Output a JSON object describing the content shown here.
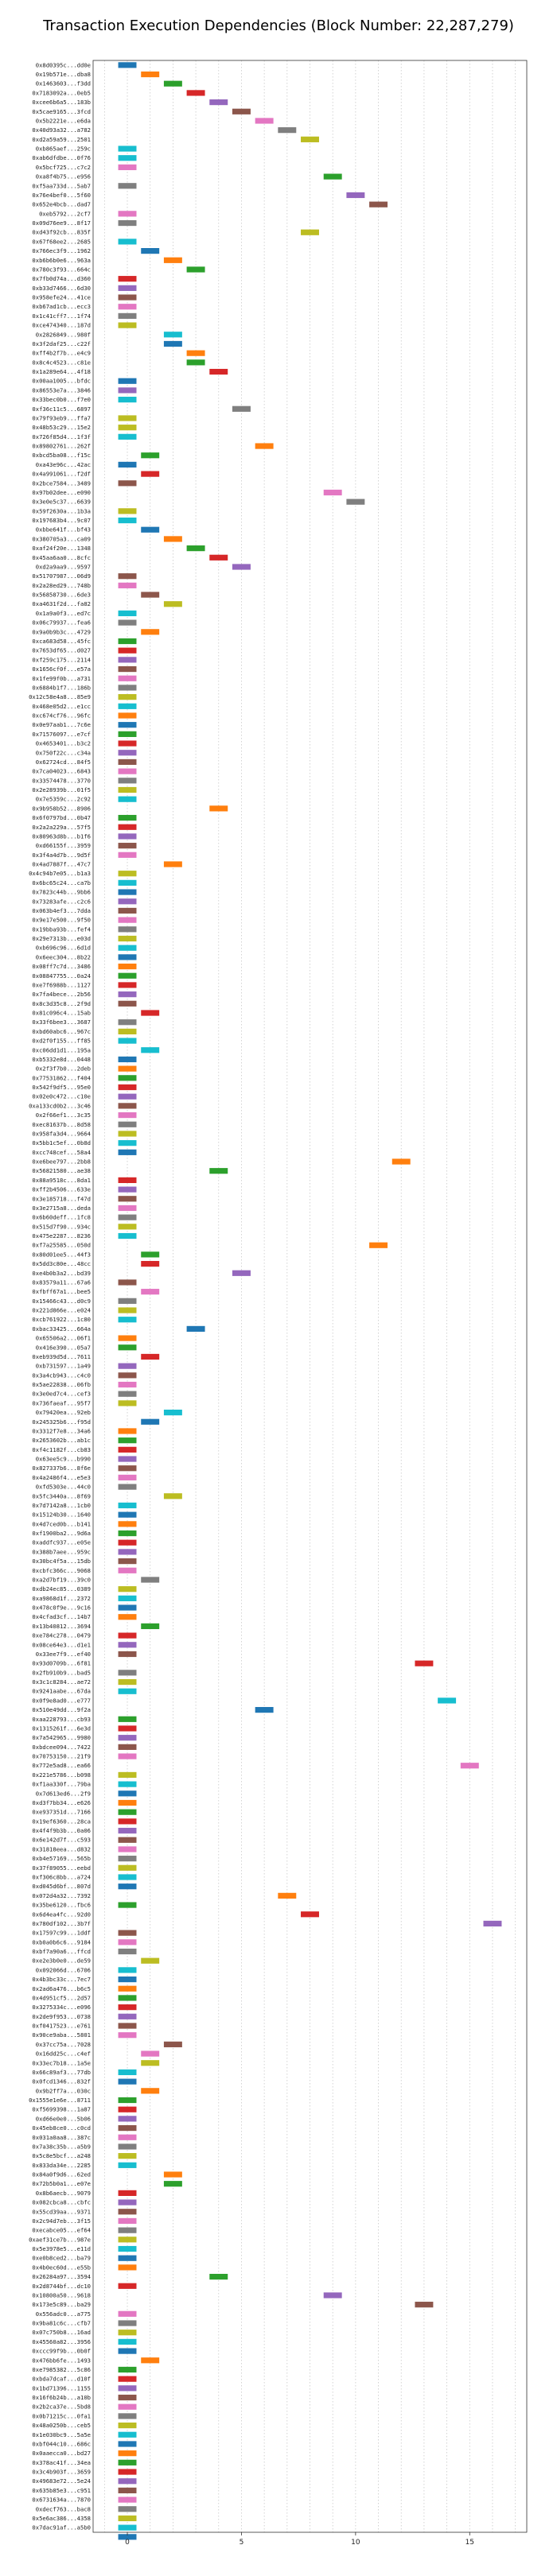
{
  "chart_data": {
    "type": "bar",
    "orientation": "horizontal",
    "title": "Transaction Execution Dependencies (Block Number: 22,287,279)",
    "xlabel": "",
    "ylabel": "",
    "xlim": [
      -1.5,
      17.5
    ],
    "xticks": [
      0,
      5,
      10,
      15
    ],
    "grid": true,
    "legend": "none",
    "palette": [
      "#1f77b4",
      "#ff7f0e",
      "#2ca02c",
      "#d62728",
      "#9467bd",
      "#8c564b",
      "#e377c2",
      "#7f7f7f",
      "#bcbd22",
      "#17becf"
    ],
    "bar_width": 0.8,
    "categories": [
      "0x8d0395c...dd0e",
      "0x19b571e...dba8",
      "0x1463603...f3dd",
      "0x7183092a...0eb5",
      "0xcee6b6a5...183b",
      "0x5cae9165...3fcd",
      "0x5b2221e...e6da",
      "0x40d93a32...a782",
      "0xd2a59a59...2501",
      "0xb865aef...259c",
      "0xab6dfdbe...0f76",
      "0x5bcf725...c7c2",
      "0xa8f4b75...e956",
      "0xf5aa733d...5ab7",
      "0x76e4bef0...5f60",
      "0x652e4bcb...dad7",
      "0xeb5792...2cf7",
      "0x09d76ee9...8f17",
      "0xd43f92cb...835f",
      "0x67f68ee2...2685",
      "0x766ec3f9...1962",
      "0xb6b6b0e6...963a",
      "0x780c3f93...664c",
      "0x7fb0d74a...d360",
      "0xb33d7466...6d30",
      "0x958efe24...41ce",
      "0xb67ad1cb...ecc3",
      "0x1c41cff7...1f74",
      "0xce474340...187d",
      "0x2826849...980f",
      "0x3f2daf25...c22f",
      "0xff4b2f7b...e4c9",
      "0x8c4c4523...c81e",
      "0x1a289e64...4f18",
      "0x00aa1005...bfdc",
      "0x86553e7a...3846",
      "0x33bec0b0...f7e0",
      "0xf36c11c5...6897",
      "0x79f93eb9...ffa7",
      "0x48b53c29...15e2",
      "0x726f85d4...1f3f",
      "0x89802761...262f",
      "0xbcd5ba08...f15c",
      "0xa43e96c...42ac",
      "0x4a991061...f2df",
      "0x2bce7584...3489",
      "0x97b02dee...e090",
      "0x3e0e5c37...6639",
      "0x59f2630a...1b3a",
      "0x197683b4...9c07",
      "0xbbe641f...bf43",
      "0x380705a3...ca09",
      "0xaf24f20e...1348",
      "0x45aa6aa0...8cfc",
      "0xd2a9aa9...9597",
      "0x51707987...06d9",
      "0x2a28ed29...748b",
      "0x56858730...6de3",
      "0xa4631f2d...fa82",
      "0x1a9a0f3...ed7c",
      "0x06c79937...fea6",
      "0x9a0b9b3c...4729",
      "0xca683d58...45fc",
      "0x7653df65...d027",
      "0xf259c175...2114",
      "0x1656cf0f...e57a",
      "0x1fe99f0b...a731",
      "0x6884b1f7...186b",
      "0x12c58e4a8...85e9",
      "0x468e05d2...e1cc",
      "0xc674cf76...96fc",
      "0x0e97aab1...7c6e",
      "0x71576097...e7cf",
      "0x4653401...b3c2",
      "0x750f22c...c34a",
      "0x62724cd...84f5",
      "0x7ca04023...6843",
      "0x33574478...3770",
      "0x2e28939b...01f5",
      "0x7e5359c...2c92",
      "0x9b958b52...8906",
      "0x6f0797bd...0b47",
      "0x2a2a229a...57f5",
      "0x80963d8b...b1f6",
      "0xd66155f...3959",
      "0x3f4a4d7b...9d5f",
      "0x4ad7887f...47c7",
      "0x4c94b7e05...b1a3",
      "0x6bc65c24...ca7b",
      "0x7823c44b...9bb6",
      "0x73283afe...c2c6",
      "0x063b4ef3...7dda",
      "0x9e17e500...9f50",
      "0x19bba93b...fef4",
      "0x29e7313b...e03d",
      "0xb696c96...6d1d",
      "0x6eec304...8b22",
      "0x08ff7c7d...3486",
      "0x08847755...0a24",
      "0xe7f6988b...1127",
      "0x7fa4bece...2b56",
      "0x8c3d35c8...2f9d",
      "0x81c096c4...15ab",
      "0x33f6bee3...3687",
      "0xbd60abc6...967c",
      "0xd2f0f155...ff85",
      "0xc06dd1d1...195a",
      "0xb5332e8d...0448",
      "0x2f3f7b0...2deb",
      "0x77531862...f404",
      "0x542f9df5...95e0",
      "0x02e0c472...c10e",
      "0xa133cd0b2...3c46",
      "0x2f66ef1...3c35",
      "0xec81637b...8d58",
      "0x958fa3d4...9664",
      "0x5bb1c5ef...0b8d",
      "0xcc748cef...58a4",
      "0xe6bee797...2bb8",
      "0x56821580...ae38",
      "0x88a9518c...8da1",
      "0xff2b4506...633e",
      "0x3e185718...f47d",
      "0x3e2715a8...deda",
      "0x6b60deff...1fc8",
      "0x515d7f90...934c",
      "0x475e2287...8236",
      "0xf7a25585...050d",
      "0x80d01ee5...44f3",
      "0x5dd3c80e...48cc",
      "0xe4b0b3a2...bd39",
      "0x83579a11...67a6",
      "0xfbff67a1...bee5",
      "0x15466c43...d0c9",
      "0x221d866e...e024",
      "0xcb761922...1c80",
      "0xbac33425...664a",
      "0x65506a2...06f1",
      "0x416e390...05a7",
      "0xeb939d5d...7611",
      "0xb731597...1a49",
      "0x3a4cb943...c4c0",
      "0x5ae22838...06fb",
      "0x3e0ed7c4...cef3",
      "0x736faeaf...95f7",
      "0x79420ea...92eb",
      "0x245325b6...f95d",
      "0x3312f7e8...34a6",
      "0x2653602b...ab1c",
      "0xf4c1182f...cb83",
      "0x63ee5c9...b990",
      "0x827337b6...8f6e",
      "0x4a2486f4...e5e3",
      "0xfd5303e...44c0",
      "0x5fc3440a...8f69",
      "0x7d7142a8...1cb0",
      "0x15124b30...1640",
      "0x4d7ced0b...b141",
      "0xf1900ba2...9d6a",
      "0xaddfc937...e05e",
      "0x388b7aee...959c",
      "0x30bc4f5a...15db",
      "0xcbfc366c...9068",
      "0xa2d7bf19...39c0",
      "0xdb24ec85...0389",
      "0xa9868d1f...2372",
      "0x478c0f9e...9c16",
      "0x4cfad3cf...14b7",
      "0x13b40812...3694",
      "0xe784c278...0479",
      "0x08ce64e3...d1e1",
      "0x33ee7f9...ef40",
      "0x93d0709b...6f81",
      "0x2fb910b9...bad5",
      "0x3c1c8284...ae72",
      "0x9241aabe...67da",
      "0x0f9e8ad0...e777",
      "0x510e49dd...9f2a",
      "0xaa228793...cb93",
      "0x1315261f...6e3d",
      "0x7a542965...9980",
      "0xbdcee094...7422",
      "0x70753150...21f9",
      "0x772e5ad8...ea66",
      "0x221e5786...b098",
      "0xf1aa330f...79ba",
      "0x7d613ed6...2f9",
      "0xd3f7bb34...e626",
      "0xe937351d...7166",
      "0x19ef6360...28ca",
      "0x4f4f9b3b...0a06",
      "0x6e142d7f...c593",
      "0x31818eea...d832",
      "0xb4e57169...565b",
      "0x37f89055...eebd",
      "0xf306c8bb...a724",
      "0xd045d6bf...807d",
      "0x072d4a32...7392",
      "0x35be6120...fbc6",
      "0x6d4ea4fc...92d0",
      "0x780df102...3b7f",
      "0x17597c99...1ddf",
      "0xb0a0b6c6...9184",
      "0xbf7a90a6...ffcd",
      "0xe2e3b0e0...de59",
      "0x092066d...6706",
      "0x4b3bc33c...7ec7",
      "0x2ad6a476...b6c5",
      "0x4d951cf5...2d57",
      "0x3275334c...e096",
      "0x2de9f953...0738",
      "0xf0417523...e761",
      "0x90ce9aba...5801",
      "0x37cc75a...7028",
      "0x16dd25c...c4ef",
      "0x33ec7b18...1a5e",
      "0x66c89af3...77db",
      "0x0fcd1346...832f",
      "0x9b2ff7a...030c",
      "0x1555e1e6e...8711",
      "0xf5699398...1a87",
      "0xd66e0e0...5b06",
      "0x45eb8ce0...c0cd",
      "0x031a0aa8...387c",
      "0x7a38c35b...a5b9",
      "0x5c8e5bcf...a248",
      "0x833da34e...2285",
      "0x84a0f9d6...62ed",
      "0x72b5b0a1...e07e",
      "0x8b6aecb...9079",
      "0x082cbca8...cbfc",
      "0x55cd39aa...9371",
      "0x2c94d7eb...3f15",
      "0xecabce05...ef64",
      "0xaef31ce7b...987e",
      "0x5e3978e5...e11d",
      "0xe0b8ced2...ba79",
      "0x4b0ec60d...e55b",
      "0x26284a97...3594",
      "0x2d8744bf...dc10",
      "0x10800a50...9618",
      "0x173e5c89...ba29",
      "0x556adc0...a775",
      "0x9ba81c6c...cfb7",
      "0x07c750b8...16ad",
      "0x45560a82...3956",
      "0xccc99f9b...0b0f",
      "0x476bb6fe...1493",
      "0xe7985382...5c86",
      "0xbda7dcaf...d10f",
      "0x1bd71396...1155",
      "0x16f6b24b...a10b",
      "0x2b2ca37e...5bd8",
      "0x0b71215c...0fa1",
      "0x48a0250b...ceb5",
      "0x1e030bc9...5a5e",
      "0xbf044c10...686c",
      "0x0aaecca0...bd27",
      "0x378ac41f...34ea",
      "0x3c4b903f...3659",
      "0x49683e72...5e24",
      "0x635b85e3...c951",
      "0x6731634a...7870",
      "0xdecf763...bac8",
      "0x5e6ac386...4358",
      "0x7dac91af...a5b0"
    ],
    "bars": [
      [
        0,
        0
      ],
      [
        1,
        1
      ],
      [
        2,
        2
      ],
      [
        3,
        3
      ],
      [
        4,
        4
      ],
      [
        5,
        5
      ],
      [
        6,
        6
      ],
      [
        7,
        7
      ],
      [
        8,
        8
      ],
      [
        0,
        9
      ],
      [
        0,
        9
      ],
      [
        0,
        6
      ],
      [
        9,
        2
      ],
      [
        0,
        7
      ],
      [
        10,
        4
      ],
      [
        11,
        5
      ],
      [
        0,
        6
      ],
      [
        0,
        7
      ],
      [
        8,
        8
      ],
      [
        0,
        9
      ],
      [
        1,
        0
      ],
      [
        2,
        1
      ],
      [
        3,
        2
      ],
      [
        0,
        3
      ],
      [
        0,
        4
      ],
      [
        0,
        5
      ],
      [
        0,
        6
      ],
      [
        0,
        7
      ],
      [
        0,
        8
      ],
      [
        2,
        9
      ],
      [
        2,
        0
      ],
      [
        3,
        1
      ],
      [
        3,
        2
      ],
      [
        4,
        3
      ],
      [
        0,
        0
      ],
      [
        0,
        4
      ],
      [
        0,
        9
      ],
      [
        5,
        7
      ],
      [
        0,
        8
      ],
      [
        0,
        8
      ],
      [
        0,
        9
      ],
      [
        6,
        1
      ],
      [
        1,
        2
      ],
      [
        0,
        0
      ],
      [
        1,
        3
      ],
      [
        0,
        5
      ],
      [
        9,
        6
      ],
      [
        10,
        7
      ],
      [
        0,
        8
      ],
      [
        0,
        9
      ],
      [
        1,
        0
      ],
      [
        2,
        1
      ],
      [
        3,
        2
      ],
      [
        4,
        3
      ],
      [
        5,
        4
      ],
      [
        0,
        5
      ],
      [
        0,
        6
      ],
      [
        1,
        5
      ],
      [
        2,
        8
      ],
      [
        0,
        9
      ],
      [
        0,
        7
      ],
      [
        1,
        1
      ],
      [
        0,
        2
      ],
      [
        0,
        3
      ],
      [
        0,
        4
      ],
      [
        0,
        5
      ],
      [
        0,
        6
      ],
      [
        0,
        7
      ],
      [
        0,
        8
      ],
      [
        0,
        9
      ],
      [
        0,
        1
      ],
      [
        0,
        0
      ],
      [
        0,
        2
      ],
      [
        0,
        3
      ],
      [
        0,
        4
      ],
      [
        0,
        5
      ],
      [
        0,
        6
      ],
      [
        0,
        7
      ],
      [
        0,
        8
      ],
      [
        0,
        9
      ],
      [
        4,
        1
      ],
      [
        0,
        2
      ],
      [
        0,
        3
      ],
      [
        0,
        4
      ],
      [
        0,
        5
      ],
      [
        0,
        6
      ],
      [
        2,
        1
      ],
      [
        0,
        8
      ],
      [
        0,
        9
      ],
      [
        0,
        0
      ],
      [
        0,
        4
      ],
      [
        0,
        5
      ],
      [
        0,
        6
      ],
      [
        0,
        7
      ],
      [
        0,
        8
      ],
      [
        0,
        9
      ],
      [
        0,
        0
      ],
      [
        0,
        1
      ],
      [
        0,
        2
      ],
      [
        0,
        3
      ],
      [
        0,
        4
      ],
      [
        0,
        5
      ],
      [
        1,
        3
      ],
      [
        0,
        7
      ],
      [
        0,
        8
      ],
      [
        0,
        9
      ],
      [
        1,
        9
      ],
      [
        0,
        0
      ],
      [
        0,
        1
      ],
      [
        0,
        2
      ],
      [
        0,
        3
      ],
      [
        0,
        4
      ],
      [
        0,
        5
      ],
      [
        0,
        6
      ],
      [
        0,
        7
      ],
      [
        0,
        8
      ],
      [
        0,
        9
      ],
      [
        0,
        0
      ],
      [
        12,
        1
      ],
      [
        4,
        2
      ],
      [
        0,
        3
      ],
      [
        0,
        4
      ],
      [
        0,
        5
      ],
      [
        0,
        6
      ],
      [
        0,
        7
      ],
      [
        0,
        8
      ],
      [
        0,
        9
      ],
      [
        11,
        1
      ],
      [
        1,
        2
      ],
      [
        1,
        3
      ],
      [
        5,
        4
      ],
      [
        0,
        5
      ],
      [
        1,
        6
      ],
      [
        0,
        7
      ],
      [
        0,
        8
      ],
      [
        0,
        9
      ],
      [
        3,
        0
      ],
      [
        0,
        1
      ],
      [
        0,
        2
      ],
      [
        1,
        3
      ],
      [
        0,
        4
      ],
      [
        0,
        5
      ],
      [
        0,
        6
      ],
      [
        0,
        7
      ],
      [
        0,
        8
      ],
      [
        2,
        9
      ],
      [
        1,
        0
      ],
      [
        0,
        1
      ],
      [
        0,
        2
      ],
      [
        0,
        3
      ],
      [
        0,
        4
      ],
      [
        0,
        5
      ],
      [
        0,
        6
      ],
      [
        0,
        7
      ],
      [
        2,
        8
      ],
      [
        0,
        9
      ],
      [
        0,
        0
      ],
      [
        0,
        1
      ],
      [
        0,
        2
      ],
      [
        0,
        3
      ],
      [
        0,
        4
      ],
      [
        0,
        5
      ],
      [
        0,
        6
      ],
      [
        1,
        7
      ],
      [
        0,
        8
      ],
      [
        0,
        9
      ],
      [
        0,
        0
      ],
      [
        0,
        1
      ],
      [
        1,
        2
      ],
      [
        0,
        3
      ],
      [
        0,
        4
      ],
      [
        0,
        5
      ],
      [
        13,
        3
      ],
      [
        0,
        7
      ],
      [
        0,
        8
      ],
      [
        0,
        9
      ],
      [
        14,
        9
      ],
      [
        6,
        0
      ],
      [
        0,
        2
      ],
      [
        0,
        3
      ],
      [
        0,
        4
      ],
      [
        0,
        5
      ],
      [
        0,
        6
      ],
      [
        15,
        6
      ],
      [
        0,
        8
      ],
      [
        0,
        9
      ],
      [
        0,
        0
      ],
      [
        0,
        1
      ],
      [
        0,
        2
      ],
      [
        0,
        3
      ],
      [
        0,
        4
      ],
      [
        0,
        5
      ],
      [
        0,
        6
      ],
      [
        0,
        7
      ],
      [
        0,
        8
      ],
      [
        0,
        9
      ],
      [
        0,
        0
      ],
      [
        7,
        1
      ],
      [
        0,
        2
      ],
      [
        8,
        3
      ],
      [
        16,
        4
      ],
      [
        0,
        5
      ],
      [
        0,
        6
      ],
      [
        0,
        7
      ],
      [
        1,
        8
      ],
      [
        0,
        9
      ],
      [
        0,
        0
      ],
      [
        0,
        1
      ],
      [
        0,
        2
      ],
      [
        0,
        3
      ],
      [
        0,
        4
      ],
      [
        0,
        5
      ],
      [
        0,
        6
      ],
      [
        2,
        5
      ],
      [
        1,
        6
      ],
      [
        1,
        8
      ],
      [
        0,
        9
      ],
      [
        0,
        0
      ],
      [
        1,
        1
      ],
      [
        0,
        2
      ],
      [
        0,
        3
      ],
      [
        0,
        4
      ],
      [
        0,
        5
      ],
      [
        0,
        6
      ],
      [
        0,
        7
      ],
      [
        0,
        8
      ],
      [
        0,
        9
      ],
      [
        2,
        1
      ],
      [
        2,
        2
      ],
      [
        0,
        3
      ],
      [
        0,
        4
      ],
      [
        0,
        5
      ],
      [
        0,
        6
      ],
      [
        0,
        7
      ],
      [
        0,
        8
      ],
      [
        0,
        9
      ],
      [
        0,
        0
      ],
      [
        0,
        1
      ],
      [
        4,
        2
      ],
      [
        0,
        3
      ],
      [
        9,
        4
      ],
      [
        13,
        5
      ],
      [
        0,
        6
      ],
      [
        0,
        7
      ],
      [
        0,
        8
      ],
      [
        0,
        9
      ],
      [
        0,
        0
      ],
      [
        1,
        1
      ],
      [
        0,
        2
      ],
      [
        0,
        3
      ],
      [
        0,
        4
      ],
      [
        0,
        5
      ],
      [
        0,
        6
      ],
      [
        0,
        7
      ],
      [
        0,
        8
      ],
      [
        0,
        9
      ],
      [
        0,
        0
      ],
      [
        0,
        1
      ],
      [
        0,
        2
      ],
      [
        0,
        3
      ],
      [
        0,
        4
      ],
      [
        0,
        5
      ],
      [
        0,
        6
      ],
      [
        0,
        7
      ],
      [
        0,
        8
      ],
      [
        0,
        9
      ],
      [
        0,
        0
      ]
    ]
  }
}
